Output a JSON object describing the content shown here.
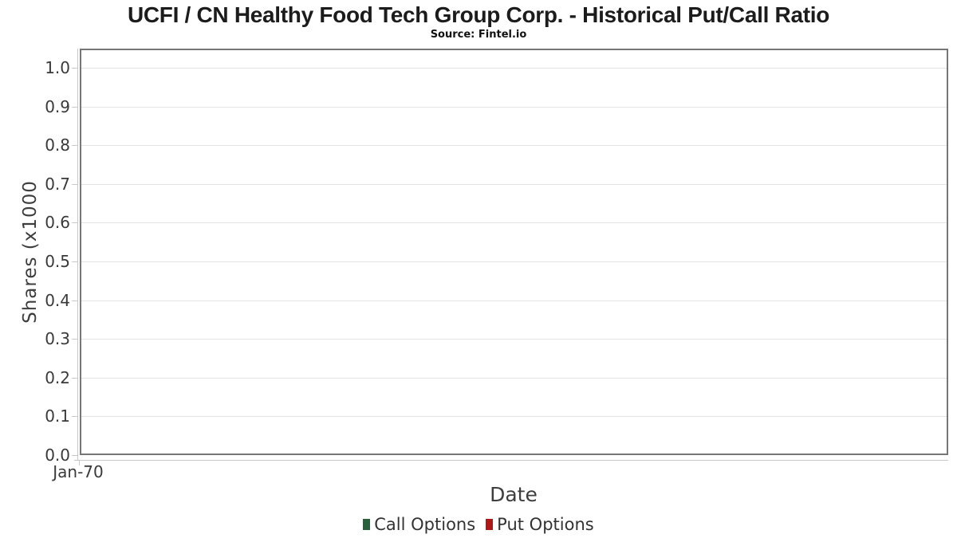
{
  "chart_data": {
    "type": "line",
    "title": "UCFI / CN Healthy Food Tech Group Corp. - Historical Put/Call Ratio",
    "subtitle": "Source: Fintel.io",
    "xlabel": "Date",
    "ylabel": "Shares (x1000",
    "xticks": [
      "Jan-70"
    ],
    "yticks": [
      0.0,
      0.1,
      0.2,
      0.3,
      0.4,
      0.5,
      0.6,
      0.7,
      0.8,
      0.9,
      1.0
    ],
    "ylim": [
      0.0,
      1.0
    ],
    "grid": true,
    "legend_position": "bottom",
    "series": [
      {
        "name": "Call Options",
        "color": "#26613c",
        "values": []
      },
      {
        "name": "Put Options",
        "color": "#b01717",
        "values": []
      }
    ]
  },
  "colors": {
    "plot_border": "#767676",
    "gridline": "#e3e3e3",
    "axis_line": "#c8c8c8",
    "title_text": "#1c1c1c",
    "label_text": "#3e3e3e"
  }
}
